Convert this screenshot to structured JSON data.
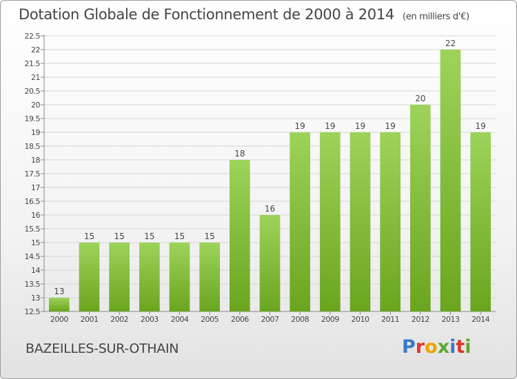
{
  "header": {
    "title": "Dotation Globale de Fonctionnement de 2000 à 2014",
    "unit": "(en milliers d'€)"
  },
  "footer": {
    "commune": "BAZEILLES-SUR-OTHAIN",
    "logo": [
      "P",
      "r",
      "o",
      "x",
      "i",
      "t",
      "i"
    ],
    "logo_colors": [
      "#3a78c8",
      "#e0352b",
      "#f0a500",
      "#5aa832",
      "#3a78c8",
      "#e0352b",
      "#5aa832"
    ]
  },
  "chart_data": {
    "type": "bar",
    "title": "Dotation Globale de Fonctionnement de 2000 à 2014",
    "xlabel": "",
    "ylabel": "",
    "categories": [
      "2000",
      "2001",
      "2002",
      "2003",
      "2004",
      "2005",
      "2006",
      "2007",
      "2008",
      "2009",
      "2010",
      "2011",
      "2012",
      "2013",
      "2014"
    ],
    "values": [
      13,
      15,
      15,
      15,
      15,
      15,
      18,
      16,
      19,
      19,
      19,
      19,
      20,
      22,
      19
    ],
    "ylim": [
      12.5,
      22.5
    ],
    "yticks": [
      "12.5",
      "13",
      "13.5",
      "14",
      "14.5",
      "15",
      "15.5",
      "16",
      "16.5",
      "17",
      "17.5",
      "18",
      "18.5",
      "19",
      "19.5",
      "20",
      "20.5",
      "21",
      "21.5",
      "22",
      "22.5"
    ],
    "grid": true,
    "bar_color_top": "#9dd35a",
    "bar_color_bottom": "#6aa51f"
  }
}
